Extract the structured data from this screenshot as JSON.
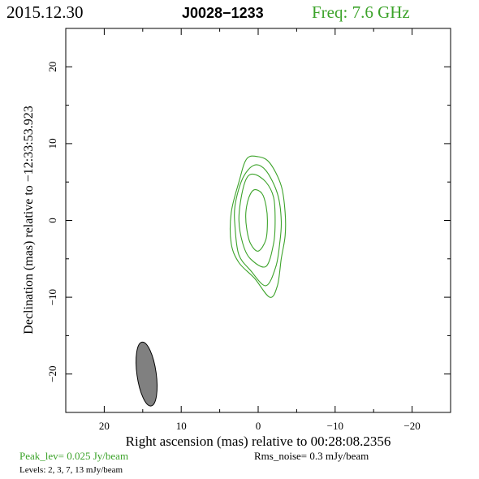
{
  "header": {
    "date": "2015.12.30",
    "source": "J0028−1233",
    "freq": "Freq: 7.6 GHz"
  },
  "footer": {
    "peak": "Peak_lev=  0.025 Jy/beam",
    "rms": "Rms_noise=   0.3 mJy/beam",
    "levels": "Levels:   2,    3,    7,   13 mJy/beam"
  },
  "colors": {
    "accent": "#3ca32a",
    "frame": "#000000",
    "beam_fill": "#808080"
  },
  "chart_data": {
    "type": "contour",
    "title": "J0028−1233",
    "xlabel": "Right ascension (mas) relative to 00:28:08.2356",
    "ylabel": "Declination (mas) relative to −12:33:53.923",
    "xlim": [
      25,
      -25
    ],
    "ylim": [
      -25,
      25
    ],
    "x_ticks": [
      20,
      10,
      0,
      -10,
      -20
    ],
    "x_tick_labels": [
      "20",
      "10",
      "0",
      "−10",
      "−20"
    ],
    "y_ticks": [
      20,
      10,
      0,
      -10,
      -20
    ],
    "y_tick_labels": [
      "20",
      "10",
      "0",
      "−10",
      "−20"
    ],
    "grid": false,
    "contour_levels_mJy_per_beam": [
      2,
      3,
      7,
      13
    ],
    "contours": [
      {
        "level": 2,
        "points": [
          [
            -1.5,
            -10
          ],
          [
            0.5,
            -7.5
          ],
          [
            2.5,
            -5.5
          ],
          [
            3.5,
            -3
          ],
          [
            3.5,
            1
          ],
          [
            2.5,
            5
          ],
          [
            1.5,
            8
          ],
          [
            0,
            8.3
          ],
          [
            -1.5,
            7.5
          ],
          [
            -3,
            4.5
          ],
          [
            -3.5,
            1
          ],
          [
            -3.5,
            -2
          ],
          [
            -3,
            -5
          ],
          [
            -2.5,
            -8.5
          ],
          [
            -1.5,
            -10
          ]
        ]
      },
      {
        "level": 3,
        "points": [
          [
            -1,
            -8.5
          ],
          [
            1,
            -6.5
          ],
          [
            2.5,
            -4.5
          ],
          [
            3,
            -1
          ],
          [
            3,
            2
          ],
          [
            2,
            5.5
          ],
          [
            0.5,
            7.2
          ],
          [
            -1,
            6.5
          ],
          [
            -2.5,
            3.5
          ],
          [
            -3,
            0
          ],
          [
            -2.8,
            -3
          ],
          [
            -2.3,
            -6
          ],
          [
            -1,
            -8.5
          ]
        ]
      },
      {
        "level": 7,
        "points": [
          [
            -1,
            -6
          ],
          [
            1,
            -5
          ],
          [
            2,
            -3
          ],
          [
            2.5,
            0
          ],
          [
            2.2,
            3
          ],
          [
            1.5,
            5.5
          ],
          [
            0.5,
            6
          ],
          [
            -1,
            5
          ],
          [
            -2,
            3
          ],
          [
            -2.2,
            0
          ],
          [
            -2,
            -3
          ],
          [
            -1,
            -6
          ]
        ]
      },
      {
        "level": 13,
        "points": [
          [
            0,
            -4
          ],
          [
            1,
            -3
          ],
          [
            1.5,
            -1
          ],
          [
            1.6,
            1
          ],
          [
            1.2,
            3
          ],
          [
            0.5,
            4
          ],
          [
            -0.5,
            3.5
          ],
          [
            -1,
            2
          ],
          [
            -1.2,
            0
          ],
          [
            -1,
            -2.5
          ],
          [
            0,
            -4
          ]
        ]
      }
    ],
    "beam": {
      "x": 14.5,
      "y": -20,
      "major": 8.4,
      "minor": 2.5,
      "pa_deg": -8
    }
  }
}
